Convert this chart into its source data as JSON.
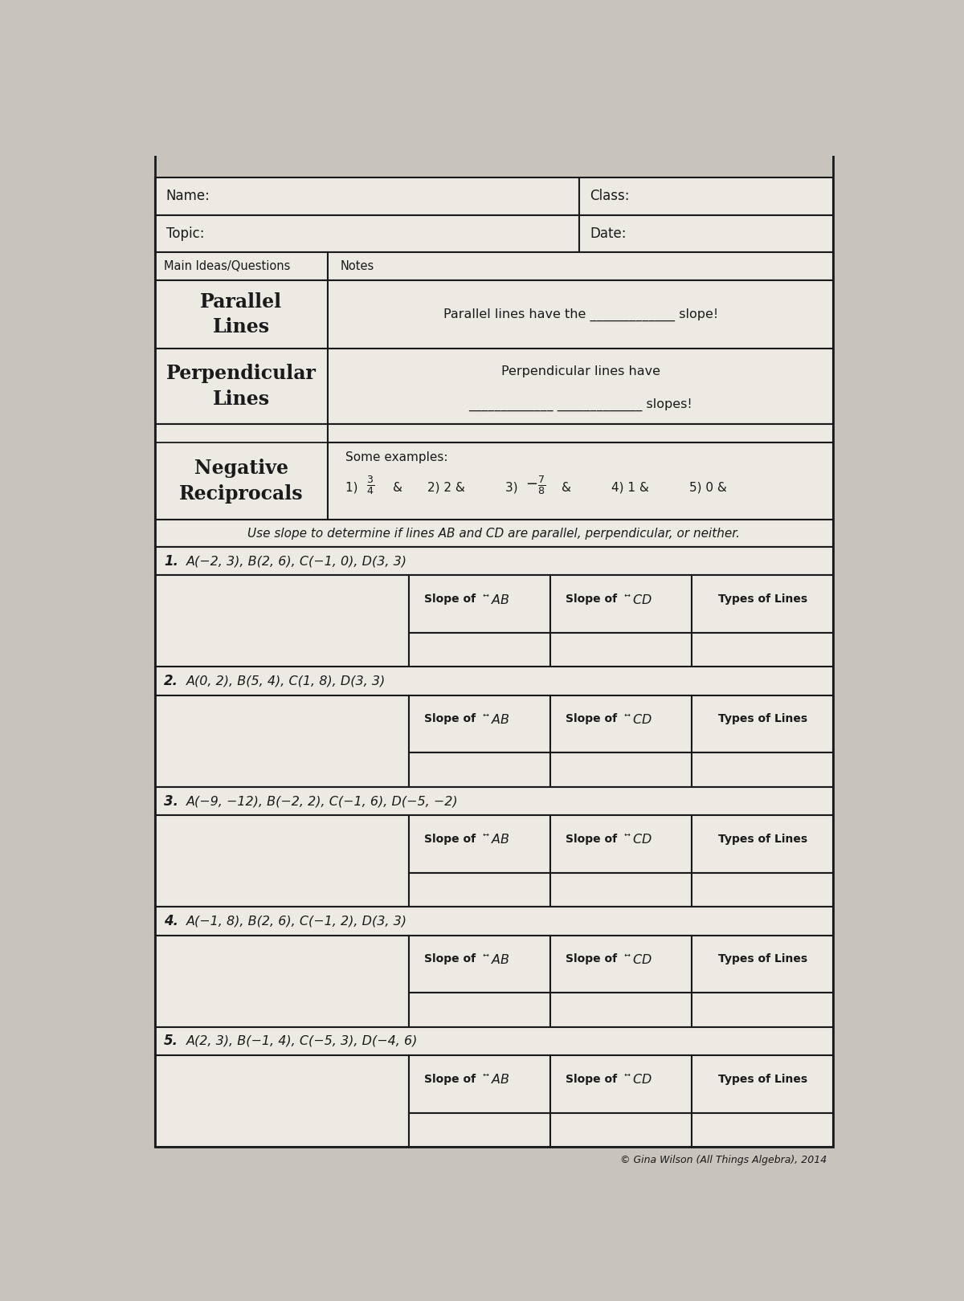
{
  "bg_color": "#c8c4bc",
  "paper_color": "#edeae4",
  "line_color": "#1a1a1a",
  "title_name": "Name:",
  "title_class": "Class:",
  "title_topic": "Topic:",
  "title_date": "Date:",
  "col1_header": "Main Ideas/Questions",
  "col2_header": "Notes",
  "row1_left": "Parallel\nLines",
  "row1_right": "Parallel lines have the _____________ slope!",
  "row2_left": "Perpendicular\nLines",
  "row2_right_line1": "Perpendicular lines have",
  "row2_right_line2": "_____________ _____________ slopes!",
  "row3_left": "Negative\nReciprocals",
  "row3_right_title": "Some examples:",
  "instruction": "Use slope to determine if lines AB and CD are parallel, perpendicular, or neither.",
  "problems": [
    {
      "num": "1.",
      "points": "A(−2, 3), B(2, 6), C(−1, 0), D(3, 3)"
    },
    {
      "num": "2.",
      "points": "A(0, 2), B(5, 4), C(1, 8), D(3, 3)"
    },
    {
      "num": "3.",
      "points": "A(−9, −12), B(−2, 2), C(−1, 6), D(−5, −2)"
    },
    {
      "num": "4.",
      "points": "A(−1, 8), B(2, 6), C(−1, 2), D(3, 3)"
    },
    {
      "num": "5.",
      "points": "A(2, 3), B(−1, 4), C(−5, 3), D(−4, 6)"
    }
  ],
  "footer": "© Gina Wilson (All Things Algebra), 2014"
}
